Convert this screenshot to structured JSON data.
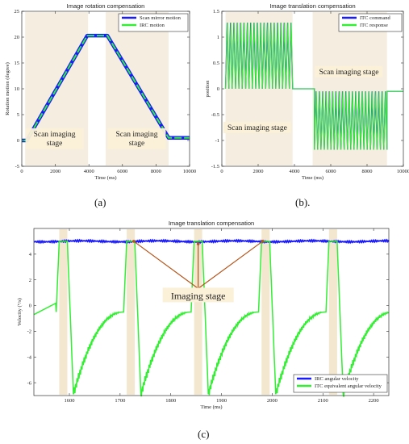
{
  "chart_data": [
    {
      "type": "line",
      "title": "Image rotation compensation",
      "xlabel": "Time (ms)",
      "ylabel": "Rotation motion (degree)",
      "xlim": [
        0,
        10000
      ],
      "ylim": [
        -5,
        25
      ],
      "xticks": [
        "0",
        "2000",
        "4000",
        "6000",
        "8000",
        "10000"
      ],
      "yticks": [
        "-5",
        "0",
        "5",
        "10",
        "15",
        "20",
        "25"
      ],
      "series": [
        {
          "name": "Scan mirror motion",
          "color": "#1a1aff",
          "x": [
            0,
            300,
            3900,
            4600,
            5100,
            8750,
            9100,
            10000
          ],
          "y": [
            0,
            0,
            20.3,
            20.3,
            20.3,
            0.5,
            0.5,
            0.5
          ]
        },
        {
          "name": "IRC motion",
          "color": "#33ee33",
          "x": [
            0,
            300,
            3900,
            4600,
            5100,
            8750,
            9100,
            10000
          ],
          "y": [
            0,
            0,
            20.3,
            20.3,
            20.3,
            0.5,
            0.5,
            0.5
          ]
        }
      ],
      "stage_bands": [
        [
          200,
          3950
        ],
        [
          5000,
          8750
        ]
      ],
      "stage_labels": [
        "Scan imaging\nstage",
        "Scan imaging\nstage"
      ],
      "legend_position": "top-right",
      "caption": "(a)"
    },
    {
      "type": "line",
      "title": "Image translation compensation",
      "xlabel": "Time (ms)",
      "ylabel": "position",
      "xlim": [
        0,
        10000
      ],
      "ylim": [
        -1.5,
        1.5
      ],
      "xticks": [
        "0",
        "2000",
        "4000",
        "6000",
        "8000",
        "10000"
      ],
      "yticks": [
        "-1.5",
        "-1",
        "-0.5",
        "0",
        "0.5",
        "1",
        "1.5"
      ],
      "series": [
        {
          "name": "ITC command",
          "color": "#1a1aff"
        },
        {
          "name": "ITC response",
          "color": "#33ee33"
        }
      ],
      "segments": [
        {
          "x_start": 200,
          "x_end": 3900,
          "low": 0,
          "high": 1.28,
          "cycles": 20
        },
        {
          "x_start": 3900,
          "x_end": 5100,
          "flat": 0
        },
        {
          "x_start": 5100,
          "x_end": 9100,
          "low": -1.18,
          "high": -0.05,
          "cycles": 22
        },
        {
          "x_start": 9100,
          "x_end": 10000,
          "flat": -0.05
        }
      ],
      "stage_bands": [
        [
          200,
          3900
        ],
        [
          5000,
          9100
        ]
      ],
      "stage_labels": [
        "Scan imaging stage",
        "Scan imaging stage"
      ],
      "legend_position": "top-right",
      "caption": "(b)."
    },
    {
      "type": "line",
      "title": "Image translation compensation",
      "xlabel": "Time (ms)",
      "ylabel": "Velocity (°/s)",
      "xlim": [
        1530,
        2230
      ],
      "ylim": [
        -7,
        6
      ],
      "xticks": [
        "1600",
        "1700",
        "1800",
        "1900",
        "2000",
        "2100",
        "2200"
      ],
      "yticks": [
        "-6",
        "-4",
        "-2",
        "0",
        "2",
        "4"
      ],
      "series": [
        {
          "name": "IRC angular velocity",
          "color": "#1a1aff",
          "value": 5
        },
        {
          "name": "ITC equivalent angular velocity",
          "color": "#33ee33"
        }
      ],
      "imaging_centers": [
        1588,
        1721,
        1854,
        1987,
        2120
      ],
      "cycle_period": 133,
      "green_profile": {
        "plateau": 5,
        "trough": -6.9,
        "recovery_end": -0.5,
        "start_level": -0.4
      },
      "stage_bands": [
        [
          1580,
          1596
        ],
        [
          1713,
          1729
        ],
        [
          1846,
          1862
        ],
        [
          1979,
          1995
        ],
        [
          2112,
          2128
        ]
      ],
      "annotation": "Imaging stage",
      "legend_position": "bottom-right",
      "caption": "(c)"
    }
  ]
}
